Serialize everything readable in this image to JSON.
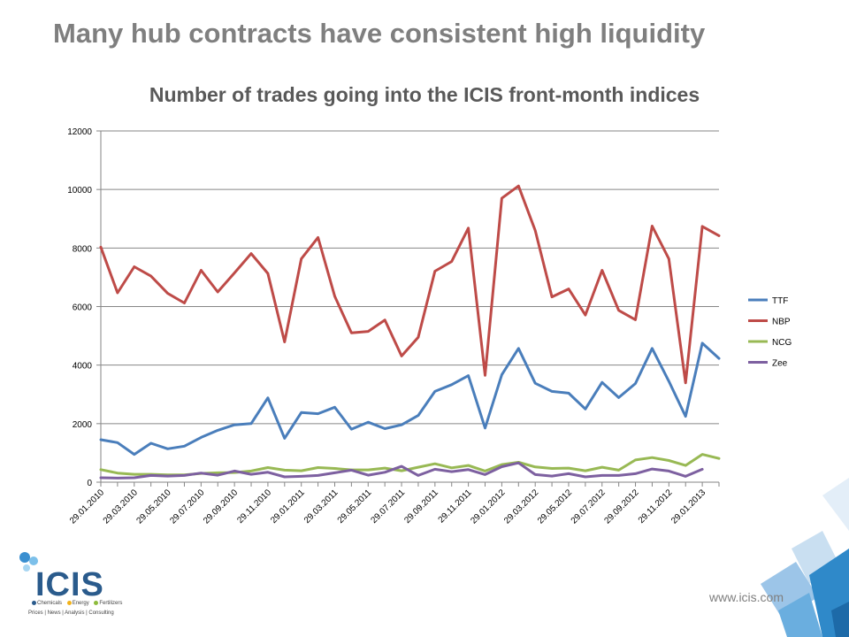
{
  "slide": {
    "title": "Many hub contracts have consistent high liquidity",
    "footer_url": "www.icis.com"
  },
  "logo": {
    "text": "ICIS",
    "sectors": [
      "Chemicals",
      "Energy",
      "Fertilizers"
    ],
    "sector_colors": [
      "#2a5b8c",
      "#f2b21a",
      "#8dbb3c"
    ],
    "tagline": "Prices | News | Analysis | Consulting"
  },
  "chart_data": {
    "type": "line",
    "title": "Number of trades going into the ICIS front-month indices",
    "xlabel": "",
    "ylabel": "",
    "ylim": [
      0,
      12000
    ],
    "yticks": [
      0,
      2000,
      4000,
      6000,
      8000,
      10000,
      12000
    ],
    "grid": true,
    "legend_position": "right",
    "x": [
      "29.01.2010",
      "28.02.2010",
      "29.03.2010",
      "29.04.2010",
      "29.05.2010",
      "29.06.2010",
      "29.07.2010",
      "29.08.2010",
      "29.09.2010",
      "29.10.2010",
      "29.11.2010",
      "29.12.2010",
      "29.01.2011",
      "28.02.2011",
      "29.03.2011",
      "29.04.2011",
      "29.05.2011",
      "29.06.2011",
      "29.07.2011",
      "29.08.2011",
      "29.09.2011",
      "29.10.2011",
      "29.11.2011",
      "29.12.2011",
      "29.01.2012",
      "29.02.2012",
      "29.03.2012",
      "29.04.2012",
      "29.05.2012",
      "29.06.2012",
      "29.07.2012",
      "29.08.2012",
      "29.09.2012",
      "29.10.2012",
      "29.11.2012",
      "29.12.2012",
      "29.01.2013",
      "28.02.2013"
    ],
    "xtick_labels": [
      "29.01.2010",
      "29.03.2010",
      "29.05.2010",
      "29.07.2010",
      "29.09.2010",
      "29.11.2010",
      "29.01.2011",
      "29.03.2011",
      "29.05.2011",
      "29.07.2011",
      "29.09.2011",
      "29.11.2011",
      "29.01.2012",
      "29.03.2012",
      "29.05.2012",
      "29.07.2012",
      "29.09.2012",
      "29.11.2012",
      "29.01.2013"
    ],
    "series": [
      {
        "name": "TTF",
        "color": "#4a7ebb",
        "values": [
          1450,
          1350,
          950,
          1330,
          1140,
          1230,
          1530,
          1770,
          1960,
          2000,
          2880,
          1500,
          2380,
          2340,
          2560,
          1810,
          2050,
          1830,
          1960,
          2280,
          3100,
          3330,
          3640,
          1850,
          3670,
          4570,
          3380,
          3100,
          3040,
          2500,
          3410,
          2890,
          3370,
          4570,
          3450,
          2250,
          4750,
          4230
        ]
      },
      {
        "name": "NBP",
        "color": "#be4b48",
        "values": [
          8030,
          6470,
          7360,
          7040,
          6450,
          6120,
          7240,
          6500,
          7150,
          7810,
          7130,
          4790,
          7630,
          8360,
          6350,
          5100,
          5150,
          5540,
          4310,
          4950,
          7210,
          7540,
          8680,
          3650,
          9700,
          10120,
          8600,
          6330,
          6600,
          5710,
          7240,
          5870,
          5550,
          8750,
          7630,
          3390,
          8740,
          8420
        ]
      },
      {
        "name": "NCG",
        "color": "#98b954",
        "values": [
          430,
          310,
          270,
          270,
          250,
          250,
          300,
          320,
          330,
          380,
          500,
          410,
          390,
          500,
          470,
          420,
          420,
          480,
          390,
          510,
          630,
          490,
          570,
          380,
          600,
          680,
          520,
          470,
          480,
          390,
          510,
          410,
          760,
          840,
          740,
          570,
          950,
          810
        ]
      },
      {
        "name": "Zee",
        "color": "#7d60a0",
        "values": [
          150,
          140,
          150,
          230,
          210,
          230,
          310,
          240,
          380,
          270,
          340,
          180,
          200,
          230,
          320,
          410,
          240,
          340,
          540,
          230,
          440,
          360,
          430,
          260,
          530,
          660,
          260,
          210,
          290,
          180,
          230,
          230,
          290,
          450,
          380,
          200,
          440,
          null
        ]
      }
    ]
  }
}
